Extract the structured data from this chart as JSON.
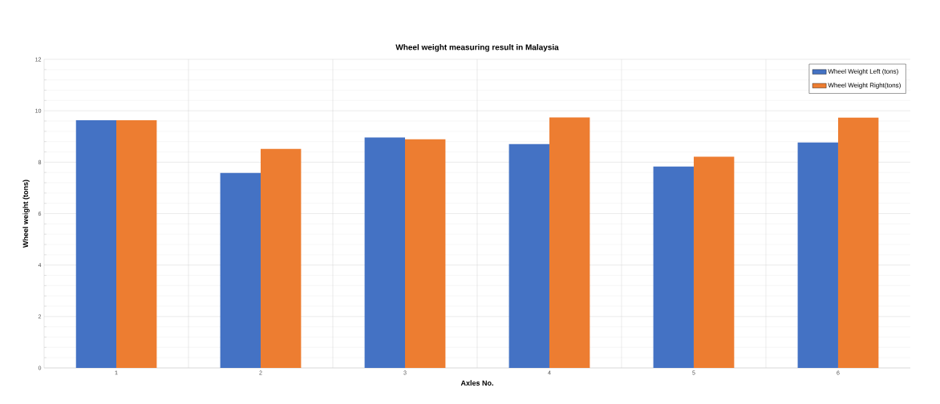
{
  "chart_data": {
    "type": "bar",
    "title": "Wheel weight measuring result in Malaysia",
    "xlabel": "Axles No.",
    "ylabel": "Wheel weight (tons)",
    "categories": [
      "1",
      "2",
      "3",
      "4",
      "5",
      "6"
    ],
    "series": [
      {
        "name": "Wheel Weight Left (tons)",
        "color": "#4472c4",
        "values": [
          9.63,
          7.58,
          8.96,
          8.7,
          7.83,
          8.77
        ]
      },
      {
        "name": "Wheel Weight Right(tons)",
        "color": "#ed7d31",
        "values": [
          9.63,
          8.52,
          8.89,
          9.74,
          8.21,
          9.73
        ]
      }
    ],
    "ylim": [
      0,
      12
    ],
    "yticks": [
      0,
      2,
      4,
      6,
      8,
      10,
      12
    ],
    "grid": true,
    "legend": "top right"
  }
}
